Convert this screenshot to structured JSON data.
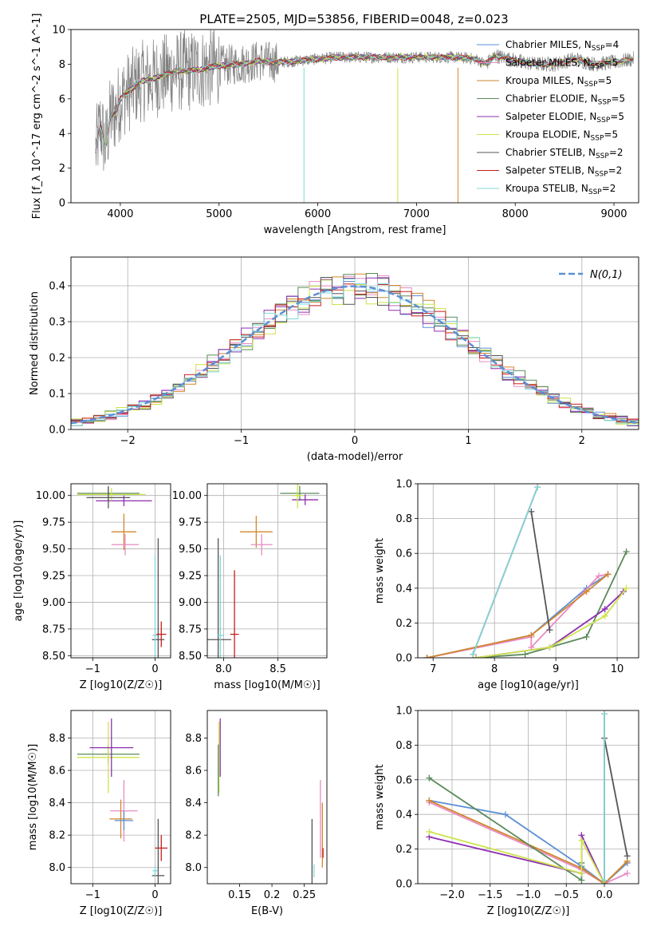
{
  "figure": {
    "title": "PLATE=2505, MJD=53856, FIBERID=0048, z=0.023"
  },
  "series_styles": [
    {
      "name": "Chabrier MILES",
      "nssp": "4",
      "color": "#5b8fd6"
    },
    {
      "name": "Salpeter MILES",
      "nssp": "5",
      "color": "#e88bc4"
    },
    {
      "name": "Kroupa MILES",
      "nssp": "5",
      "color": "#d2872c"
    },
    {
      "name": "Chabrier ELODIE",
      "nssp": "5",
      "color": "#5a8a5a"
    },
    {
      "name": "Salpeter ELODIE",
      "nssp": "5",
      "color": "#8c2fb0"
    },
    {
      "name": "Kroupa ELODIE",
      "nssp": "5",
      "color": "#cde34a"
    },
    {
      "name": "Chabrier STELIB",
      "nssp": "2",
      "color": "#555555"
    },
    {
      "name": "Salpeter STELIB",
      "nssp": "2",
      "color": "#c81e1e"
    },
    {
      "name": "Kroupa STELIB",
      "nssp": "2",
      "color": "#7fd8dc"
    }
  ],
  "chart_data": [
    {
      "id": "spectrum",
      "type": "line",
      "title": "PLATE=2505, MJD=53856, FIBERID=0048, z=0.023",
      "xlabel": "wavelength [Angstrom, rest frame]",
      "ylabel": "Flux [f_λ 10^-17 erg cm^-2 s^-1 A^-1]",
      "xlim": [
        3500,
        9250
      ],
      "ylim": [
        0,
        10
      ],
      "xticks": [
        4000,
        5000,
        6000,
        7000,
        8000,
        9000
      ],
      "yticks": [
        0,
        2,
        4,
        6,
        8,
        10
      ],
      "legend_position": "right",
      "data_color": "#808080",
      "model_continuum": {
        "x": [
          3750,
          3800,
          3850,
          3900,
          3950,
          4000,
          4100,
          4200,
          4300,
          4400,
          4500,
          4600,
          4700,
          4800,
          4900,
          5000,
          5200,
          5400,
          5600,
          5800,
          6000,
          6200,
          6400,
          6600,
          6800,
          7000,
          7200,
          7400,
          7600,
          7700,
          7800,
          8000,
          8200,
          8400,
          8600,
          8800,
          9000,
          9200
        ],
        "y": [
          3.0,
          4.5,
          3.2,
          5.0,
          5.2,
          6.0,
          6.5,
          7.0,
          7.1,
          7.3,
          7.5,
          7.6,
          7.6,
          7.7,
          7.8,
          7.9,
          8.0,
          8.2,
          8.1,
          8.2,
          8.3,
          8.4,
          8.4,
          8.4,
          8.4,
          8.4,
          8.4,
          8.4,
          8.3,
          8.0,
          8.5,
          8.2,
          8.0,
          8.0,
          8.3,
          8.0,
          8.1,
          8.3
        ]
      }
    },
    {
      "id": "residuals",
      "type": "histogram",
      "xlabel": "(data-model)/error",
      "ylabel": "Normed distribution",
      "xlim": [
        -2.5,
        2.5
      ],
      "ylim": [
        0,
        0.48
      ],
      "xticks": [
        -2,
        -1,
        0,
        1,
        2
      ],
      "yticks": [
        0.0,
        0.1,
        0.2,
        0.3,
        0.4
      ],
      "grid": true,
      "legend_position": "top-right",
      "reference_curve": {
        "name": "N(0,1)",
        "color": "#5b8fd6",
        "style": "dashed",
        "mean": 0,
        "sigma": 1
      },
      "bin_width": 0.1
    },
    {
      "id": "age-Z",
      "type": "errorbar",
      "xlabel": "Z [log10(Z/Z☉)]",
      "ylabel": "age  [log10(age/yr)]",
      "xlim": [
        -1.35,
        0.25
      ],
      "ylim": [
        8.48,
        10.11
      ],
      "xticks": [
        -1,
        0
      ],
      "yticks": [
        8.5,
        8.75,
        9.0,
        9.25,
        9.5,
        9.75,
        10.0
      ],
      "grid": true,
      "points": [
        {
          "x": -0.75,
          "y": 10.02,
          "xerr": 0.5,
          "yerr": 0.07,
          "s": 3
        },
        {
          "x": -0.5,
          "y": 9.95,
          "xerr": 0.45,
          "yerr": 0.05,
          "s": 4
        },
        {
          "x": -0.7,
          "y": 10.01,
          "xerr": 0.55,
          "yerr": 0.06,
          "s": 5
        },
        {
          "x": -0.75,
          "y": 9.98,
          "xerr": 0.35,
          "yerr": 0.1,
          "s": 6
        },
        {
          "x": -0.5,
          "y": 9.66,
          "xerr": 0.2,
          "yerr": 0.17,
          "s": 2
        },
        {
          "x": -0.48,
          "y": 9.54,
          "xerr": 0.22,
          "yerr": 0.1,
          "s": 1
        },
        {
          "x": 0.05,
          "y": 8.65,
          "xerr": 0.1,
          "yerr": 0.95,
          "s": 6
        },
        {
          "x": 0.1,
          "y": 8.7,
          "xerr": 0.08,
          "yerr": 0.12,
          "s": 7
        },
        {
          "x": 0.0,
          "y": 8.69,
          "xerr": 0.04,
          "yerr": 0.75,
          "s": 8
        }
      ]
    },
    {
      "id": "age-mass",
      "type": "errorbar",
      "xlabel": "mass [log10(M/M☉)]",
      "ylabel": "",
      "xlim": [
        7.85,
        8.95
      ],
      "ylim": [
        8.48,
        10.11
      ],
      "xticks": [
        8.0,
        8.5
      ],
      "yticks": [
        8.5,
        8.75,
        9.0,
        9.25,
        9.5,
        9.75,
        10.0
      ],
      "grid": true,
      "points": [
        {
          "x": 8.7,
          "y": 10.02,
          "xerr": 0.18,
          "yerr": 0.07,
          "s": 3
        },
        {
          "x": 8.75,
          "y": 9.96,
          "xerr": 0.12,
          "yerr": 0.05,
          "s": 4
        },
        {
          "x": 8.68,
          "y": 10.0,
          "xerr": 0.05,
          "yerr": 0.12,
          "s": 5
        },
        {
          "x": 8.3,
          "y": 9.66,
          "xerr": 0.15,
          "yerr": 0.15,
          "s": 2
        },
        {
          "x": 8.35,
          "y": 9.54,
          "xerr": 0.1,
          "yerr": 0.1,
          "s": 1
        },
        {
          "x": 8.1,
          "y": 8.7,
          "xerr": 0.04,
          "yerr": 0.6,
          "s": 7
        },
        {
          "x": 7.95,
          "y": 8.65,
          "xerr": 0.12,
          "yerr": 0.95,
          "s": 6
        },
        {
          "x": 7.97,
          "y": 8.69,
          "xerr": 0.03,
          "yerr": 0.75,
          "s": 8
        }
      ]
    },
    {
      "id": "weight-age",
      "type": "line",
      "xlabel": "age  [log10(age/yr)]",
      "ylabel": "mass weight",
      "xlim": [
        6.75,
        10.35
      ],
      "ylim": [
        0,
        1
      ],
      "xticks": [
        7,
        8,
        9,
        10
      ],
      "yticks": [
        0.0,
        0.2,
        0.4,
        0.6,
        0.8,
        1.0
      ],
      "grid": true,
      "series": [
        {
          "s": 0,
          "x": [
            6.9,
            8.6,
            9.5,
            9.85
          ],
          "y": [
            0.0,
            0.13,
            0.4,
            0.48
          ]
        },
        {
          "s": 1,
          "x": [
            6.9,
            8.6,
            8.6,
            9.7,
            9.85
          ],
          "y": [
            0.0,
            0.12,
            0.06,
            0.47,
            0.48
          ]
        },
        {
          "s": 2,
          "x": [
            6.9,
            8.6,
            9.5,
            9.85
          ],
          "y": [
            0.0,
            0.13,
            0.38,
            0.48
          ]
        },
        {
          "s": 3,
          "x": [
            7.7,
            8.5,
            9.5,
            10.15
          ],
          "y": [
            0.0,
            0.02,
            0.12,
            0.61
          ]
        },
        {
          "s": 4,
          "x": [
            7.7,
            8.9,
            9.8,
            10.1
          ],
          "y": [
            0.0,
            0.06,
            0.28,
            0.38
          ]
        },
        {
          "s": 5,
          "x": [
            7.7,
            8.9,
            9.8,
            10.15
          ],
          "y": [
            0.0,
            0.06,
            0.24,
            0.4
          ]
        },
        {
          "s": 6,
          "x": [
            8.6,
            8.9
          ],
          "y": [
            0.84,
            0.16
          ]
        },
        {
          "s": 7,
          "x": [
            7.65,
            8.7
          ],
          "y": [
            0.02,
            0.98
          ]
        },
        {
          "s": 8,
          "x": [
            7.65,
            8.7
          ],
          "y": [
            0.02,
            0.98
          ]
        }
      ]
    },
    {
      "id": "mass-Z",
      "type": "errorbar",
      "xlabel": "Z [log10(Z/Z☉)]",
      "ylabel": "mass [log10(M/M☉)]",
      "xlim": [
        -1.35,
        0.25
      ],
      "ylim": [
        7.9,
        8.97
      ],
      "xticks": [
        -1,
        0
      ],
      "yticks": [
        8.0,
        8.2,
        8.4,
        8.6,
        8.8
      ],
      "grid": true,
      "points": [
        {
          "x": -0.75,
          "y": 8.7,
          "xerr": 0.5,
          "yerr": 0.06,
          "s": 3
        },
        {
          "x": -0.75,
          "y": 8.68,
          "xerr": 0.5,
          "yerr": 0.22,
          "s": 5
        },
        {
          "x": -0.7,
          "y": 8.74,
          "xerr": 0.35,
          "yerr": 0.18,
          "s": 4
        },
        {
          "x": -0.5,
          "y": 8.35,
          "xerr": 0.22,
          "yerr": 0.19,
          "s": 1
        },
        {
          "x": -0.55,
          "y": 8.3,
          "xerr": 0.18,
          "yerr": 0.12,
          "s": 2
        },
        {
          "x": -0.5,
          "y": 8.29,
          "xerr": 0.15,
          "yerr": 0.06,
          "s": 0
        },
        {
          "x": 0.1,
          "y": 8.12,
          "xerr": 0.1,
          "yerr": 0.08,
          "s": 7
        },
        {
          "x": 0.05,
          "y": 7.95,
          "xerr": 0.1,
          "yerr": 0.35,
          "s": 6
        },
        {
          "x": 0.0,
          "y": 7.98,
          "xerr": 0.04,
          "yerr": 0.03,
          "s": 8
        }
      ]
    },
    {
      "id": "mass-ebv",
      "type": "errorbar",
      "xlabel": "E(B-V)",
      "ylabel": "",
      "xlim": [
        0.1,
        0.285
      ],
      "ylim": [
        7.9,
        8.97
      ],
      "xticks": [
        0.15,
        0.2,
        0.25
      ],
      "yticks": [
        8.0,
        8.2,
        8.4,
        8.6,
        8.8
      ],
      "grid": false,
      "points": [
        {
          "x": 0.12,
          "y": 8.74,
          "yerr": 0.18,
          "s": 4
        },
        {
          "x": 0.118,
          "y": 8.68,
          "yerr": 0.22,
          "s": 5
        },
        {
          "x": 0.117,
          "y": 8.6,
          "yerr": 0.16,
          "s": 3
        },
        {
          "x": 0.275,
          "y": 8.3,
          "yerr": 0.24,
          "s": 1
        },
        {
          "x": 0.278,
          "y": 8.2,
          "yerr": 0.2,
          "s": 2
        },
        {
          "x": 0.279,
          "y": 8.09,
          "yerr": 0.03,
          "s": 7
        },
        {
          "x": 0.262,
          "y": 8.1,
          "yerr": 0.2,
          "s": 6
        },
        {
          "x": 0.265,
          "y": 7.98,
          "yerr": 0.04,
          "s": 8
        }
      ]
    },
    {
      "id": "weight-Z",
      "type": "line",
      "xlabel": "Z [log10(Z/Z☉)]",
      "ylabel": "mass weight",
      "xlim": [
        -2.45,
        0.45
      ],
      "ylim": [
        0,
        1
      ],
      "xticks": [
        -2.0,
        -1.5,
        -1.0,
        -0.5,
        0.0
      ],
      "yticks": [
        0.0,
        0.2,
        0.4,
        0.6,
        0.8,
        1.0
      ],
      "grid": true,
      "series": [
        {
          "s": 0,
          "x": [
            -2.3,
            -1.3,
            -0.3,
            0.0,
            0.3
          ],
          "y": [
            0.48,
            0.4,
            0.1,
            0.0,
            0.12
          ]
        },
        {
          "s": 1,
          "x": [
            -2.3,
            -0.3,
            0.0,
            0.3
          ],
          "y": [
            0.47,
            0.08,
            0.0,
            0.06
          ]
        },
        {
          "s": 2,
          "x": [
            -2.3,
            -0.3,
            0.0,
            0.3
          ],
          "y": [
            0.48,
            0.09,
            0.0,
            0.13
          ]
        },
        {
          "s": 3,
          "x": [
            -2.3,
            -0.3,
            -0.3
          ],
          "y": [
            0.61,
            0.02,
            0.12
          ]
        },
        {
          "s": 4,
          "x": [
            -2.3,
            -0.3,
            -0.3,
            0.0
          ],
          "y": [
            0.27,
            0.06,
            0.28,
            0.0
          ]
        },
        {
          "s": 5,
          "x": [
            -2.3,
            -0.3,
            -0.3,
            0.0
          ],
          "y": [
            0.3,
            0.06,
            0.25,
            0.0
          ]
        },
        {
          "s": 6,
          "x": [
            0.0,
            0.3
          ],
          "y": [
            0.84,
            0.16
          ]
        },
        {
          "s": 7,
          "x": [
            0.0,
            0.0
          ],
          "y": [
            0.02,
            0.98
          ]
        },
        {
          "s": 8,
          "x": [
            0.0,
            0.0
          ],
          "y": [
            0.02,
            0.98
          ]
        }
      ]
    }
  ]
}
